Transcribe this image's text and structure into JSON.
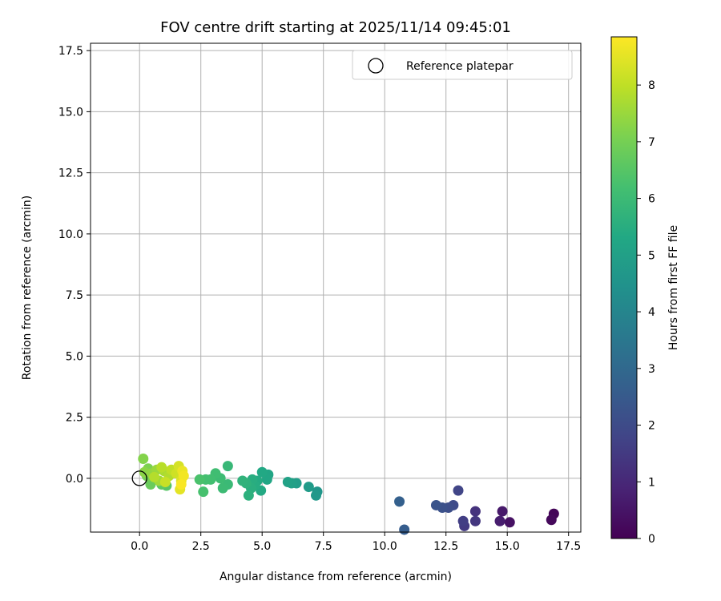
{
  "chart_data": {
    "type": "scatter",
    "title": "FOV centre drift starting at 2025/11/14 09:45:01",
    "xlabel": "Angular distance from reference (arcmin)",
    "ylabel": "Rotation from reference (arcmin)",
    "xlim": [
      -2.0,
      18.0
    ],
    "ylim": [
      -2.2,
      17.8
    ],
    "x_ticks": [
      0.0,
      2.5,
      5.0,
      7.5,
      10.0,
      12.5,
      15.0,
      17.5
    ],
    "y_ticks": [
      0.0,
      2.5,
      5.0,
      7.5,
      10.0,
      12.5,
      15.0,
      17.5
    ],
    "grid": true,
    "legend": {
      "location": "upper right",
      "entries": [
        "Reference platepar"
      ]
    },
    "reference_point": {
      "x": 0.0,
      "y": 0.0,
      "label": "Reference platepar"
    },
    "colorbar": {
      "label": "Hours from first FF file",
      "colormap": "viridis",
      "range": [
        0,
        8.85
      ],
      "ticks": [
        0,
        1,
        2,
        3,
        4,
        5,
        6,
        7,
        8
      ]
    },
    "points": [
      {
        "x": 16.9,
        "y": -1.45,
        "hours": 0.1
      },
      {
        "x": 16.8,
        "y": -1.7,
        "hours": 0.2
      },
      {
        "x": 15.1,
        "y": -1.8,
        "hours": 0.4
      },
      {
        "x": 14.8,
        "y": -1.35,
        "hours": 0.6
      },
      {
        "x": 14.7,
        "y": -1.75,
        "hours": 0.7
      },
      {
        "x": 13.7,
        "y": -1.35,
        "hours": 1.3
      },
      {
        "x": 13.7,
        "y": -1.75,
        "hours": 1.4
      },
      {
        "x": 13.25,
        "y": -1.95,
        "hours": 1.5
      },
      {
        "x": 13.2,
        "y": -1.75,
        "hours": 1.6
      },
      {
        "x": 13.0,
        "y": -0.5,
        "hours": 1.8
      },
      {
        "x": 12.8,
        "y": -1.1,
        "hours": 2.0
      },
      {
        "x": 12.6,
        "y": -1.2,
        "hours": 2.1
      },
      {
        "x": 12.35,
        "y": -1.2,
        "hours": 2.2
      },
      {
        "x": 12.1,
        "y": -1.1,
        "hours": 2.3
      },
      {
        "x": 10.8,
        "y": -2.1,
        "hours": 2.6
      },
      {
        "x": 10.6,
        "y": -0.95,
        "hours": 2.7
      },
      {
        "x": 7.25,
        "y": -0.55,
        "hours": 4.6
      },
      {
        "x": 7.2,
        "y": -0.7,
        "hours": 4.7
      },
      {
        "x": 6.9,
        "y": -0.35,
        "hours": 4.8
      },
      {
        "x": 6.4,
        "y": -0.2,
        "hours": 4.9
      },
      {
        "x": 6.2,
        "y": -0.2,
        "hours": 5.0
      },
      {
        "x": 6.05,
        "y": -0.15,
        "hours": 5.05
      },
      {
        "x": 5.25,
        "y": 0.15,
        "hours": 5.2
      },
      {
        "x": 5.2,
        "y": -0.05,
        "hours": 5.25
      },
      {
        "x": 5.0,
        "y": 0.25,
        "hours": 5.3
      },
      {
        "x": 4.95,
        "y": -0.5,
        "hours": 5.35
      },
      {
        "x": 4.8,
        "y": -0.1,
        "hours": 5.4
      },
      {
        "x": 4.7,
        "y": -0.3,
        "hours": 5.45
      },
      {
        "x": 4.6,
        "y": -0.05,
        "hours": 5.5
      },
      {
        "x": 4.55,
        "y": -0.4,
        "hours": 5.55
      },
      {
        "x": 4.45,
        "y": -0.7,
        "hours": 5.6
      },
      {
        "x": 4.35,
        "y": -0.2,
        "hours": 5.65
      },
      {
        "x": 4.2,
        "y": -0.1,
        "hours": 5.7
      },
      {
        "x": 3.6,
        "y": 0.5,
        "hours": 5.9
      },
      {
        "x": 3.6,
        "y": -0.25,
        "hours": 5.95
      },
      {
        "x": 3.4,
        "y": -0.4,
        "hours": 6.0
      },
      {
        "x": 3.3,
        "y": 0.0,
        "hours": 6.05
      },
      {
        "x": 3.1,
        "y": 0.2,
        "hours": 6.1
      },
      {
        "x": 2.9,
        "y": -0.05,
        "hours": 6.15
      },
      {
        "x": 2.7,
        "y": -0.05,
        "hours": 6.2
      },
      {
        "x": 2.6,
        "y": -0.55,
        "hours": 6.25
      },
      {
        "x": 2.45,
        "y": -0.05,
        "hours": 6.3
      },
      {
        "x": 1.1,
        "y": -0.3,
        "hours": 6.5
      },
      {
        "x": 0.9,
        "y": -0.25,
        "hours": 6.6
      },
      {
        "x": 0.45,
        "y": -0.25,
        "hours": 6.8
      },
      {
        "x": 0.3,
        "y": 0.1,
        "hours": 7.0
      },
      {
        "x": 0.35,
        "y": 0.4,
        "hours": 7.1
      },
      {
        "x": 0.15,
        "y": 0.8,
        "hours": 7.2
      },
      {
        "x": 0.2,
        "y": 0.25,
        "hours": 7.3
      },
      {
        "x": 0.5,
        "y": 0.2,
        "hours": 7.4
      },
      {
        "x": 0.7,
        "y": 0.35,
        "hours": 7.5
      },
      {
        "x": 0.8,
        "y": -0.1,
        "hours": 7.6
      },
      {
        "x": 1.0,
        "y": 0.3,
        "hours": 7.7
      },
      {
        "x": 1.2,
        "y": 0.1,
        "hours": 7.8
      },
      {
        "x": 0.6,
        "y": 0.05,
        "hours": 7.85
      },
      {
        "x": 0.9,
        "y": 0.45,
        "hours": 7.9
      },
      {
        "x": 1.3,
        "y": 0.35,
        "hours": 8.0
      },
      {
        "x": 1.05,
        "y": -0.15,
        "hours": 8.1
      },
      {
        "x": 1.5,
        "y": 0.2,
        "hours": 8.2
      },
      {
        "x": 1.6,
        "y": 0.5,
        "hours": 8.3
      },
      {
        "x": 1.7,
        "y": -0.1,
        "hours": 8.4
      },
      {
        "x": 1.65,
        "y": -0.45,
        "hours": 8.5
      },
      {
        "x": 1.75,
        "y": 0.3,
        "hours": 8.6
      },
      {
        "x": 1.8,
        "y": 0.1,
        "hours": 8.7
      },
      {
        "x": 1.7,
        "y": -0.25,
        "hours": 8.8
      }
    ]
  }
}
